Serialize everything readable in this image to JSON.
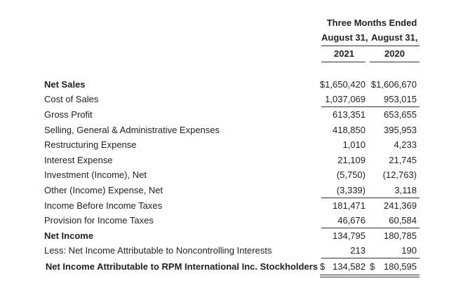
{
  "header": {
    "period_title": "Three Months Ended",
    "col1_date": "August 31,",
    "col2_date": "August 31,",
    "col1_year": "2021",
    "col2_year": "2020"
  },
  "rows": [
    {
      "label": "Net Sales",
      "v1": "$1,650,420",
      "v2": "$1,606,670"
    },
    {
      "label": "Cost of Sales",
      "v1": "1,037,069",
      "v2": "953,015"
    },
    {
      "label": "Gross Profit",
      "v1": "613,351",
      "v2": "653,655"
    },
    {
      "label": "Selling, General & Administrative Expenses",
      "v1": "418,850",
      "v2": "395,953"
    },
    {
      "label": "Restructuring Expense",
      "v1": "1,010",
      "v2": "4,233"
    },
    {
      "label": "Interest Expense",
      "v1": "21,109",
      "v2": "21,745"
    },
    {
      "label": "Investment (Income), Net",
      "v1": "(5,750)",
      "v2": "(12,763)"
    },
    {
      "label": "Other (Income) Expense, Net",
      "v1": "(3,339)",
      "v2": "3,118"
    },
    {
      "label": "Income Before Income Taxes",
      "v1": "181,471",
      "v2": "241,369"
    },
    {
      "label": "Provision for Income Taxes",
      "v1": "46,676",
      "v2": "60,584"
    },
    {
      "label": "Net Income",
      "v1": "134,795",
      "v2": "180,785"
    },
    {
      "label": "Less: Net Income Attributable to Noncontrolling Interests",
      "v1": "213",
      "v2": "190"
    }
  ],
  "final_row": {
    "label": "Net Income Attributable to RPM International Inc. Stockholders",
    "currency1": "$",
    "v1": "134,582",
    "currency2": "$",
    "v2": "180,595"
  }
}
